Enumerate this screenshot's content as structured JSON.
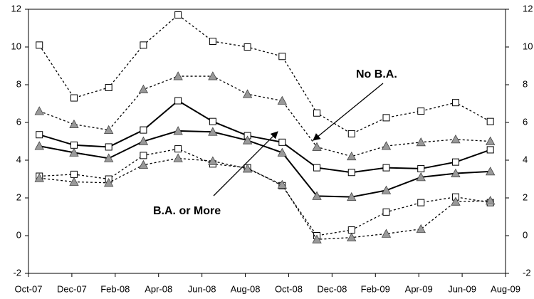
{
  "chart_data": {
    "type": "line",
    "x": [
      0.5,
      2.1,
      3.7,
      5.3,
      6.9,
      8.5,
      10.1,
      11.7,
      13.3,
      14.9,
      16.5,
      18.1,
      19.7,
      21.3
    ],
    "xlim": [
      0,
      22
    ],
    "xticks": [
      {
        "value": 0,
        "label": "Oct-07"
      },
      {
        "value": 2,
        "label": "Dec-07"
      },
      {
        "value": 4,
        "label": "Feb-08"
      },
      {
        "value": 6,
        "label": "Apr-08"
      },
      {
        "value": 8,
        "label": "Jun-08"
      },
      {
        "value": 10,
        "label": "Aug-08"
      },
      {
        "value": 12,
        "label": "Oct-08"
      },
      {
        "value": 14,
        "label": "Dec-08"
      },
      {
        "value": 16,
        "label": "Feb-09"
      },
      {
        "value": 18,
        "label": "Apr-09"
      },
      {
        "value": 20,
        "label": "Jun-09"
      },
      {
        "value": 22,
        "label": "Aug-09"
      }
    ],
    "ylim": [
      -2,
      12
    ],
    "yticks": [
      -2,
      0,
      2,
      4,
      6,
      8,
      10,
      12
    ],
    "y2lim": [
      -2,
      12
    ],
    "y2ticks": [
      -2,
      0,
      2,
      4,
      6,
      8,
      10,
      12
    ],
    "series": [
      {
        "marker": "square",
        "line": "dotted",
        "color": "#000000",
        "values": [
          10.1,
          7.3,
          7.85,
          10.1,
          11.7,
          10.3,
          10.0,
          9.5,
          6.5,
          5.4,
          6.25,
          6.6,
          7.05,
          6.05
        ]
      },
      {
        "marker": "triangle",
        "line": "dotted",
        "color": "#000000",
        "values": [
          6.6,
          5.9,
          5.6,
          7.75,
          8.45,
          8.45,
          7.5,
          7.15,
          4.7,
          4.2,
          4.75,
          4.95,
          5.1,
          5.0
        ]
      },
      {
        "marker": "square",
        "line": "solid",
        "color": "#000000",
        "values": [
          5.35,
          4.8,
          4.7,
          5.6,
          7.15,
          6.05,
          5.3,
          4.95,
          3.6,
          3.35,
          3.6,
          3.55,
          3.9,
          4.55
        ]
      },
      {
        "marker": "triangle",
        "line": "solid",
        "color": "#000000",
        "values": [
          4.75,
          4.4,
          4.1,
          5.0,
          5.55,
          5.5,
          5.05,
          4.4,
          2.1,
          2.05,
          2.4,
          3.1,
          3.3,
          3.4
        ]
      },
      {
        "marker": "square",
        "line": "dotted",
        "color": "#000000",
        "values": [
          3.15,
          3.25,
          3.0,
          4.25,
          4.6,
          3.8,
          3.6,
          2.65,
          0.0,
          0.3,
          1.25,
          1.75,
          2.05,
          1.75
        ]
      },
      {
        "marker": "triangle",
        "line": "dotted",
        "color": "#000000",
        "values": [
          3.05,
          2.85,
          2.8,
          3.75,
          4.1,
          3.95,
          3.55,
          2.7,
          -0.2,
          -0.1,
          0.1,
          0.35,
          1.8,
          1.85
        ]
      }
    ],
    "annotations": [
      "No B.A.",
      "B.A. or More"
    ]
  }
}
